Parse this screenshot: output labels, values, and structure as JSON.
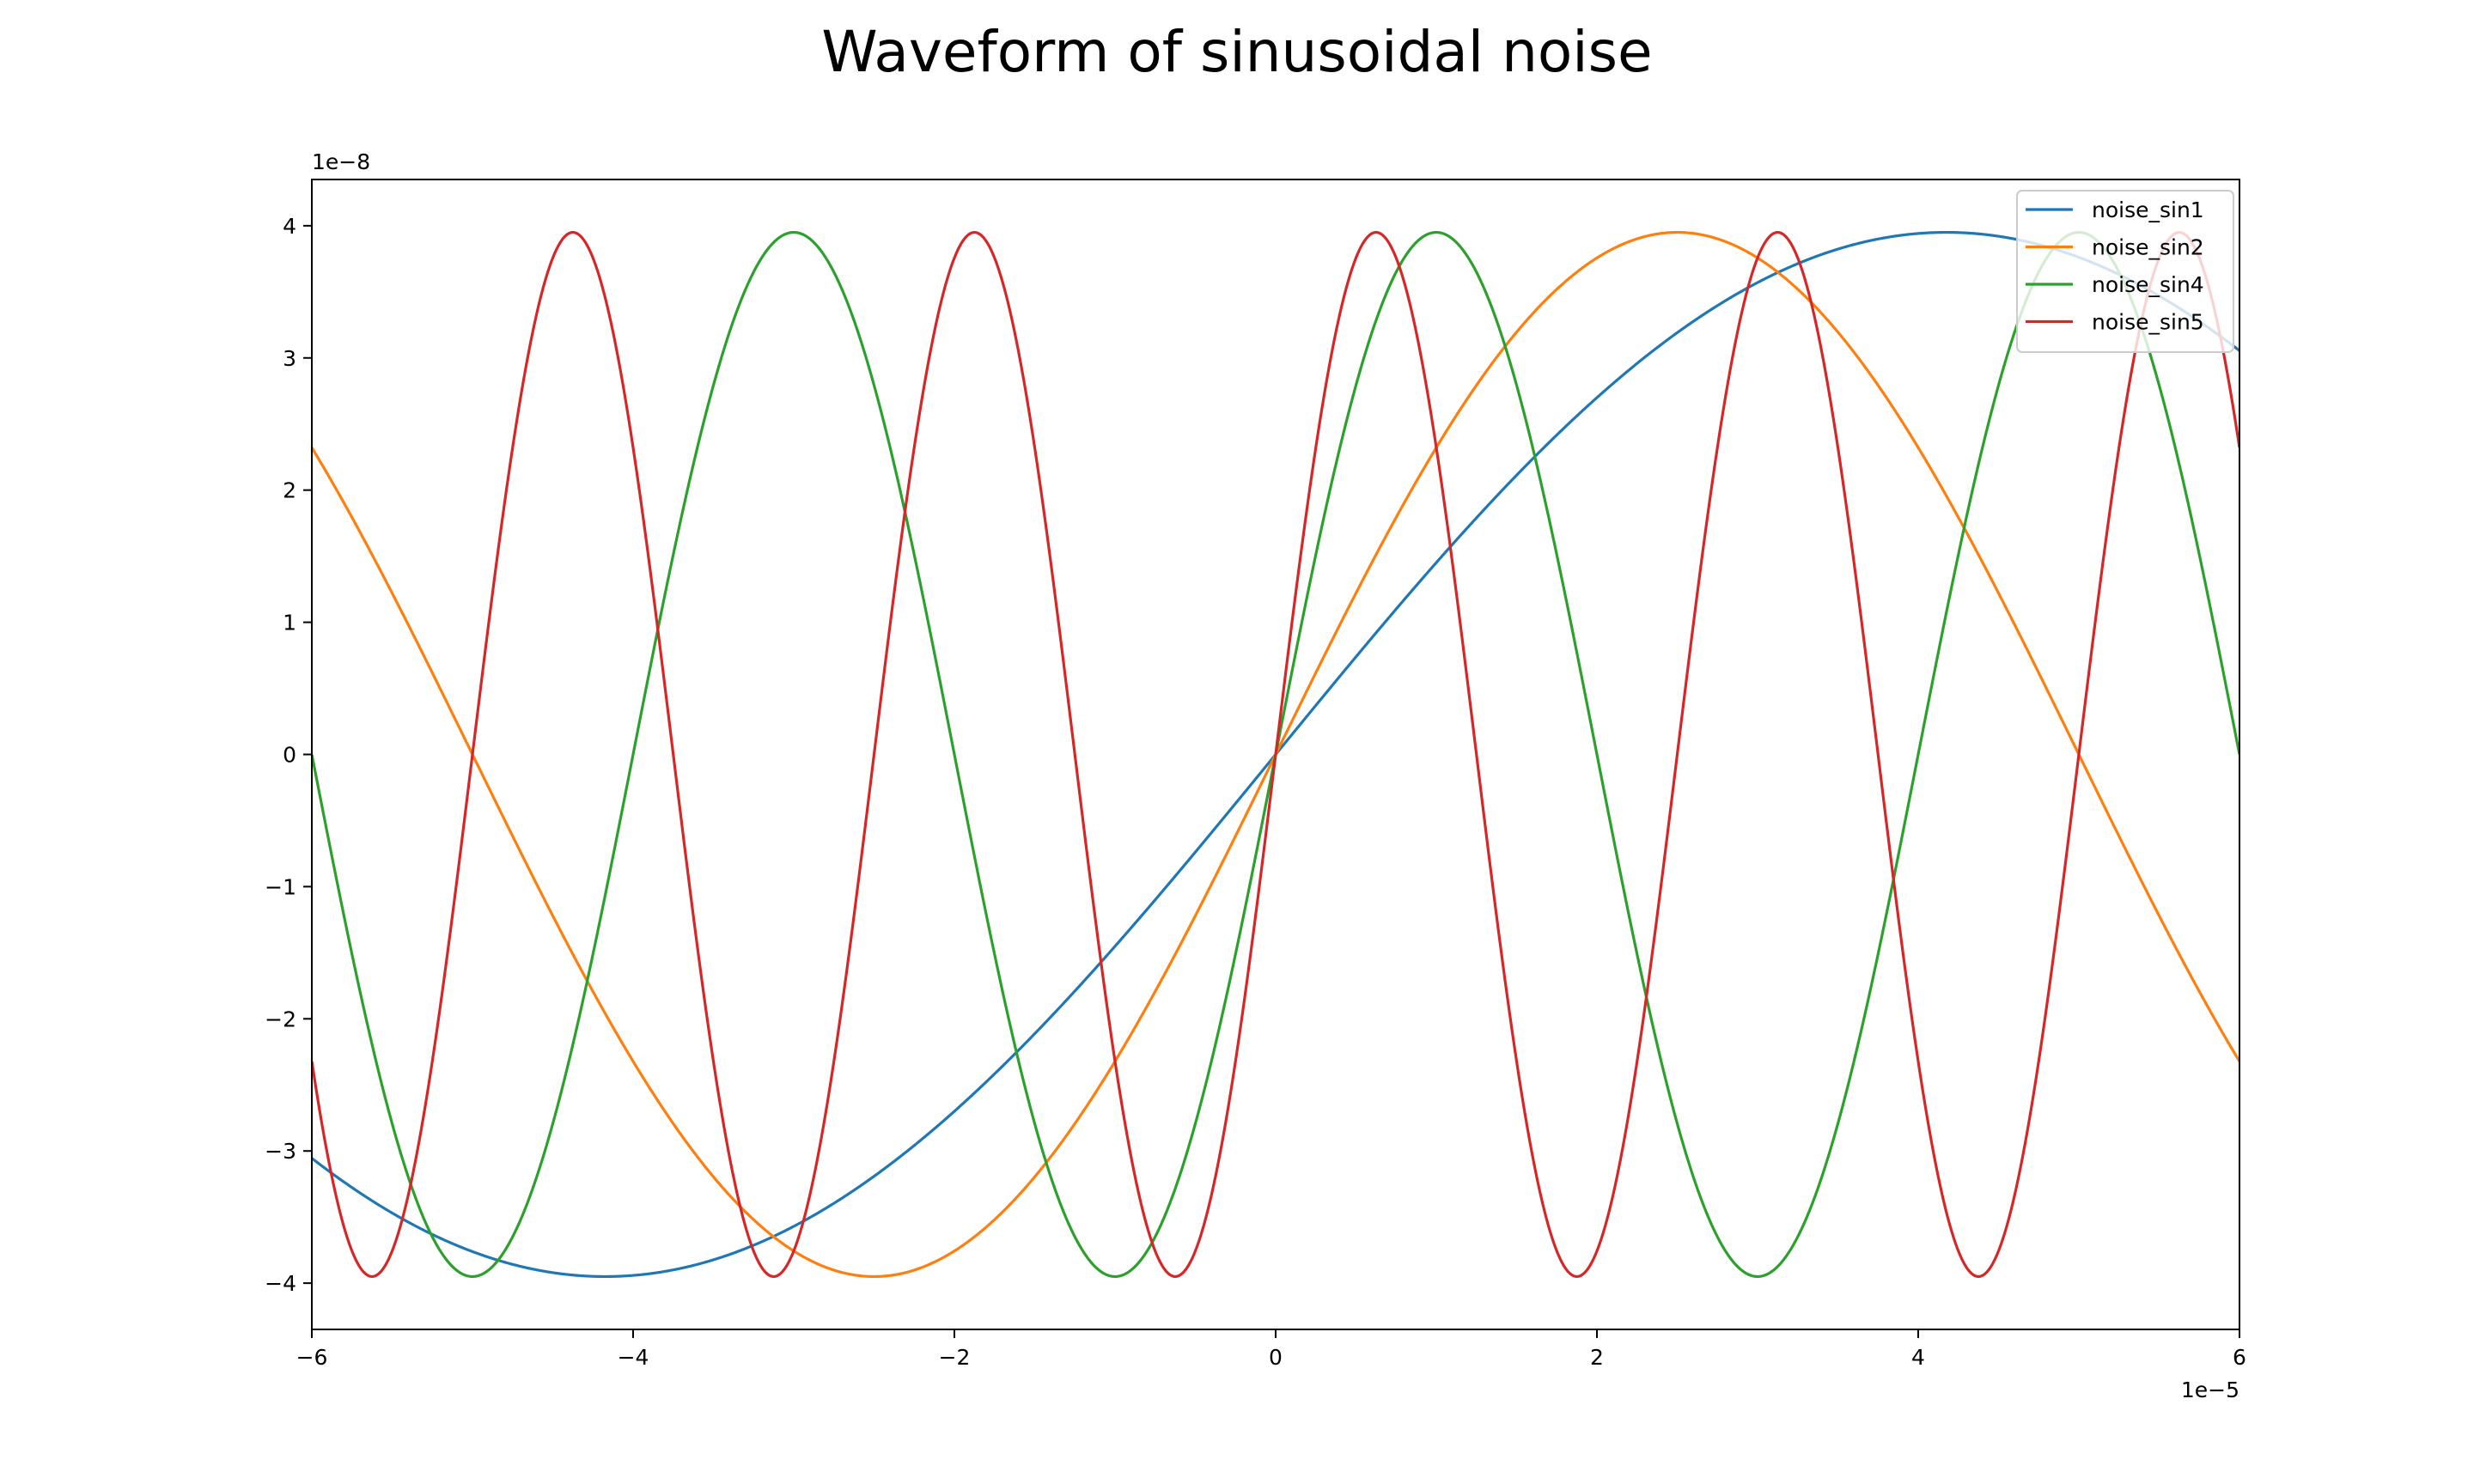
{
  "chart_data": {
    "type": "line",
    "title": "Waveform of sinusoidal noise",
    "xlabel": "",
    "ylabel": "",
    "x_offset_label": "1e−5",
    "y_offset_label": "1e−8",
    "xlim": [
      -6e-05,
      6e-05
    ],
    "ylim": [
      -4.35e-08,
      4.35e-08
    ],
    "x_ticks": [
      -6,
      -4,
      -2,
      0,
      2,
      4,
      6
    ],
    "x_tick_labels": [
      "−6",
      "−4",
      "−2",
      "0",
      "2",
      "4",
      "6"
    ],
    "y_ticks": [
      -4,
      -3,
      -2,
      -1,
      0,
      1,
      2,
      3,
      4
    ],
    "y_tick_labels": [
      "−4",
      "−3",
      "−2",
      "−1",
      "0",
      "1",
      "2",
      "3",
      "4"
    ],
    "grid": false,
    "legend_position": "top-right",
    "series": [
      {
        "name": "noise_sin1",
        "color": "#1f77b4",
        "amplitude": 3.95e-08,
        "period": 0.000167,
        "phase": 0
      },
      {
        "name": "noise_sin2",
        "color": "#ff7f0e",
        "amplitude": 3.95e-08,
        "period": 0.0001,
        "phase": 0
      },
      {
        "name": "noise_sin4",
        "color": "#2ca02c",
        "amplitude": 3.95e-08,
        "period": 4e-05,
        "phase": 0
      },
      {
        "name": "noise_sin5",
        "color": "#d62728",
        "amplitude": 3.95e-08,
        "period": 2.5e-05,
        "phase": 0
      }
    ]
  }
}
